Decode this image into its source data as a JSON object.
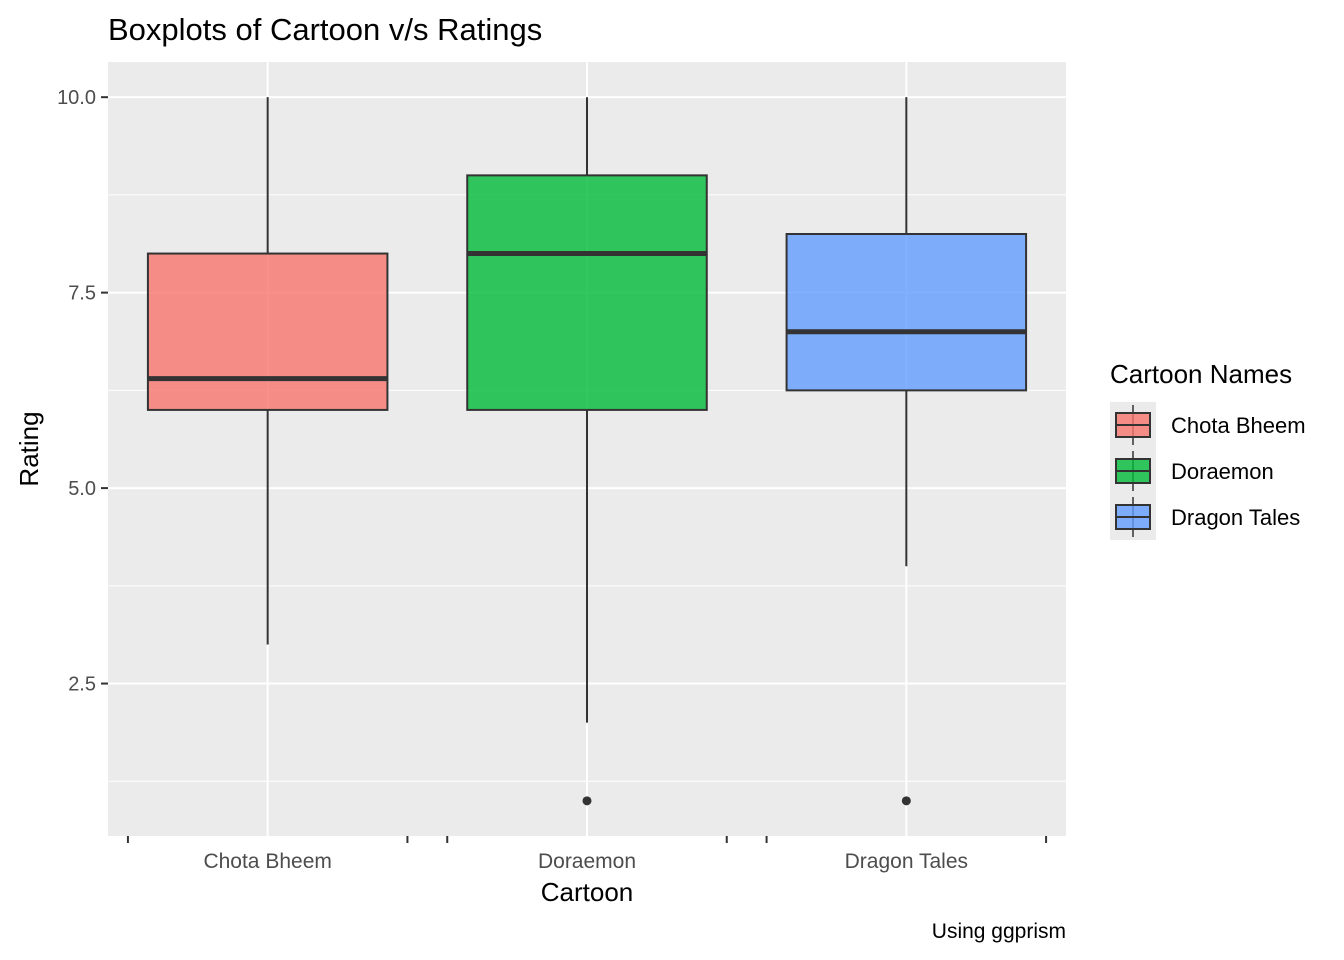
{
  "chart_data": {
    "type": "boxplot",
    "title": "Boxplots of Cartoon v/s Ratings",
    "caption": "Using ggprism",
    "xlabel": "Cartoon",
    "ylabel": "Rating",
    "ylim": [
      0.55,
      10.45
    ],
    "yticks": [
      2.5,
      5.0,
      7.5,
      10.0
    ],
    "ytick_labels": [
      "2.5",
      "5.0",
      "7.5",
      "10.0"
    ],
    "grid": true,
    "legend": {
      "title": "Cartoon Names",
      "position": "right"
    },
    "categories": [
      "Chota Bheem",
      "Doraemon",
      "Dragon Tales"
    ],
    "boxes": [
      {
        "name": "Chota Bheem",
        "min": 3,
        "q1": 6,
        "median": 6.4,
        "q3": 8,
        "max": 10,
        "outliers": [],
        "color": "#F8766D"
      },
      {
        "name": "Doraemon",
        "min": 2,
        "q1": 6,
        "median": 8,
        "q3": 9,
        "max": 10,
        "outliers": [
          1
        ],
        "color": "#00BA38"
      },
      {
        "name": "Dragon Tales",
        "min": 4,
        "q1": 6.25,
        "median": 7,
        "q3": 8.25,
        "max": 10,
        "outliers": [
          1
        ],
        "color": "#619CFF"
      }
    ]
  }
}
